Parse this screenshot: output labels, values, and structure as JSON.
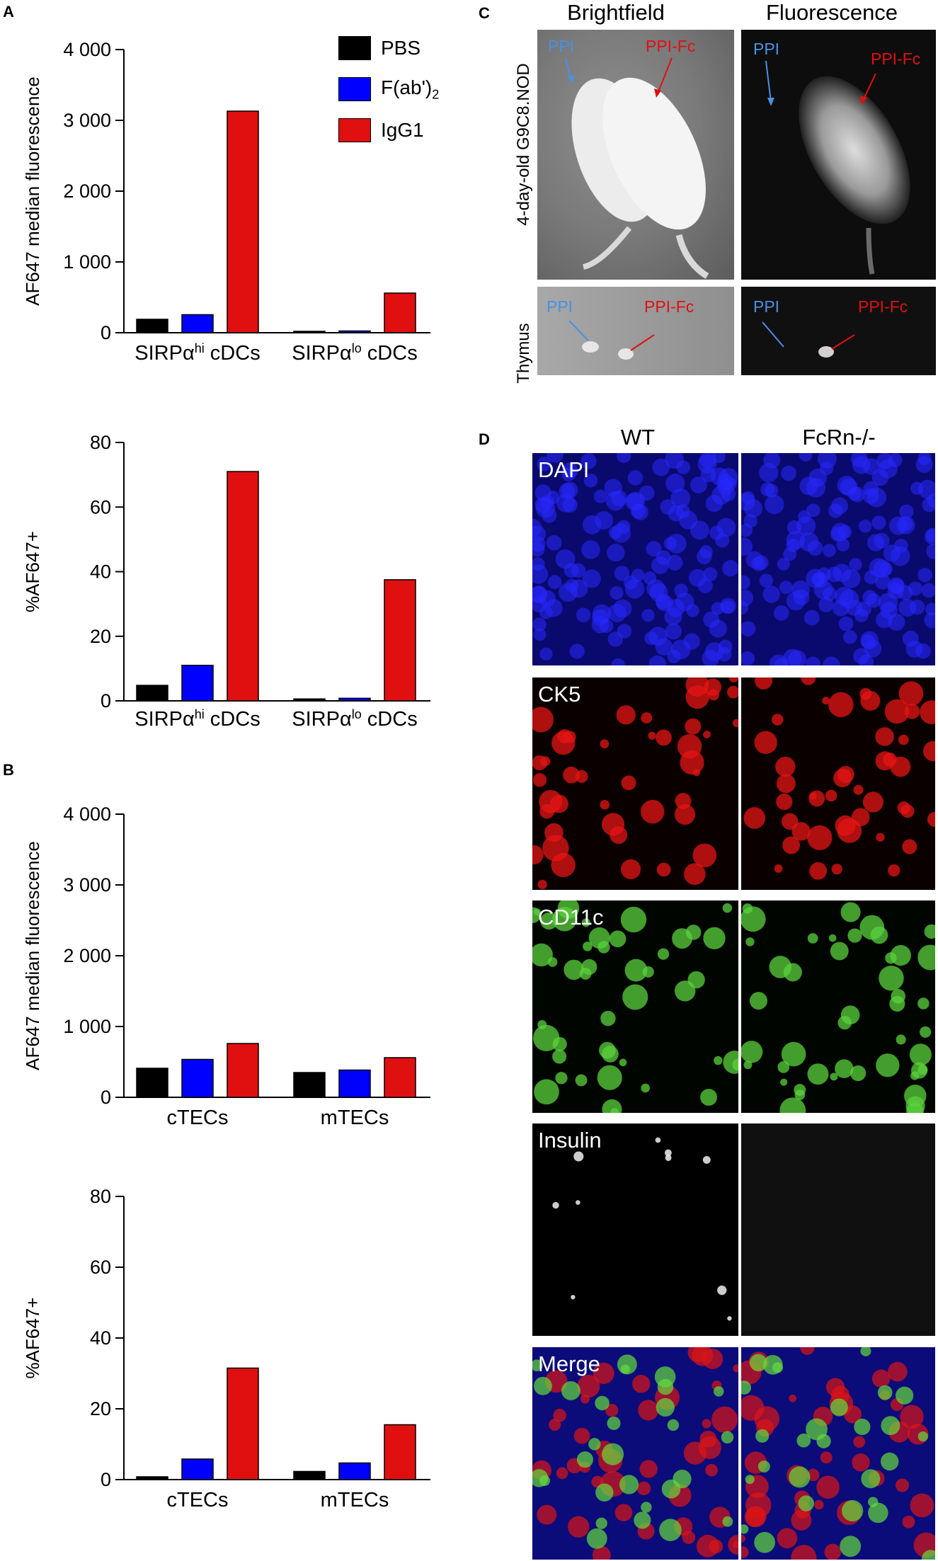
{
  "panels": {
    "A": "A",
    "B": "B",
    "C": "C",
    "D": "D"
  },
  "legend": [
    {
      "label": "PBS",
      "color": "#000000"
    },
    {
      "label": "F(ab')",
      "sub": "2",
      "color": "#0000ff"
    },
    {
      "label": "IgG1",
      "color": "#e01010"
    }
  ],
  "chart_data": [
    {
      "type": "bar",
      "ylabel": "AF647 median fluorescence",
      "ylim": [
        0,
        4000
      ],
      "yticks": [
        "0",
        "1 000",
        "2 000",
        "3 000",
        "4 000"
      ],
      "groups": [
        {
          "label": "SIRPα",
          "sup": "hi",
          "rest": " cDCs"
        },
        {
          "label": "SIRPα",
          "sup": "lo",
          "rest": " cDCs"
        }
      ],
      "series": [
        {
          "name": "PBS",
          "values": [
            190,
            20
          ]
        },
        {
          "name": "F(ab')2",
          "values": [
            255,
            25
          ]
        },
        {
          "name": "IgG1",
          "values": [
            3130,
            560
          ]
        }
      ]
    },
    {
      "type": "bar",
      "ylabel": "%AF647+",
      "ylim": [
        0,
        80
      ],
      "yticks": [
        "0",
        "20",
        "40",
        "60",
        "80"
      ],
      "groups": [
        {
          "label": "SIRPα",
          "sup": "hi",
          "rest": " cDCs"
        },
        {
          "label": "SIRPα",
          "sup": "lo",
          "rest": " cDCs"
        }
      ],
      "series": [
        {
          "name": "PBS",
          "values": [
            4.8,
            0.6
          ]
        },
        {
          "name": "F(ab')2",
          "values": [
            11,
            0.8
          ]
        },
        {
          "name": "IgG1",
          "values": [
            71,
            37.5
          ]
        }
      ]
    },
    {
      "type": "bar",
      "ylabel": "AF647 median fluorescence",
      "ylim": [
        0,
        4000
      ],
      "yticks": [
        "0",
        "1 000",
        "2 000",
        "3 000",
        "4 000"
      ],
      "groups": [
        {
          "label": "cTECs",
          "sup": "",
          "rest": ""
        },
        {
          "label": "mTECs",
          "sup": "",
          "rest": ""
        }
      ],
      "series": [
        {
          "name": "PBS",
          "values": [
            410,
            350
          ]
        },
        {
          "name": "F(ab')2",
          "values": [
            535,
            385
          ]
        },
        {
          "name": "IgG1",
          "values": [
            760,
            560
          ]
        }
      ]
    },
    {
      "type": "bar",
      "ylabel": "%AF647+",
      "ylim": [
        0,
        80
      ],
      "yticks": [
        "0",
        "20",
        "40",
        "60",
        "80"
      ],
      "groups": [
        {
          "label": "cTECs",
          "sup": "",
          "rest": ""
        },
        {
          "label": "mTECs",
          "sup": "",
          "rest": ""
        }
      ],
      "series": [
        {
          "name": "PBS",
          "values": [
            0.8,
            2.3
          ]
        },
        {
          "name": "F(ab')2",
          "values": [
            5.8,
            4.7
          ]
        },
        {
          "name": "IgG1",
          "values": [
            31.5,
            15.5
          ]
        }
      ]
    }
  ],
  "panel_c": {
    "col_brightfield": "Brightfield",
    "col_fluorescence": "Fluorescence",
    "row_mouse": "4-day-old G9C8.NOD",
    "row_thymus": "Thymus",
    "ppi": "PPI",
    "ppi_fc": "PPI-Fc",
    "ppi_color": "#4a90e2",
    "ppi_fc_color": "#e01010"
  },
  "panel_d": {
    "col_wt": "WT",
    "col_ko": "FcRn-/-",
    "rows": [
      "DAPI",
      "CK5",
      "CD11c",
      "Insulin",
      "Merge"
    ]
  }
}
